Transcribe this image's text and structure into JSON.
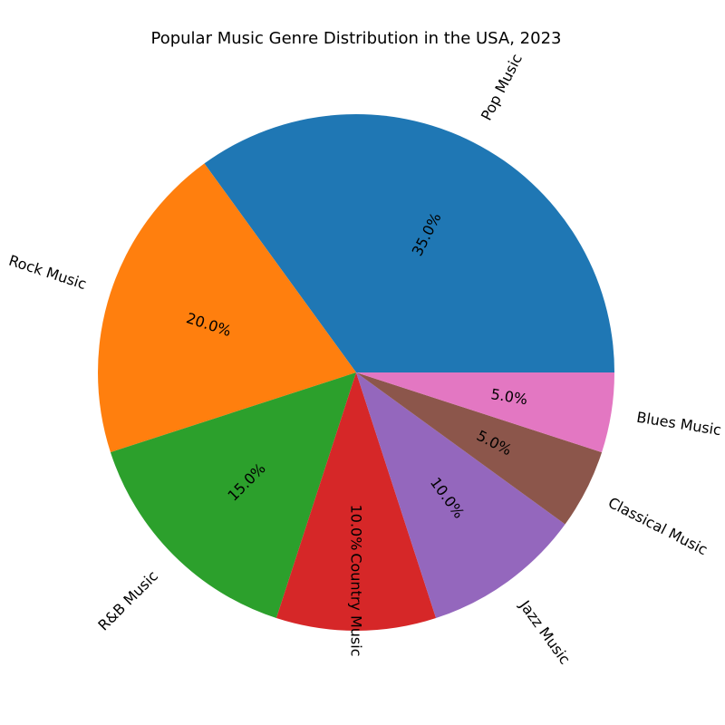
{
  "chart_data": {
    "type": "pie",
    "title": "Popular Music Genre Distribution in the USA, 2023",
    "categories": [
      "Pop Music",
      "Rock Music",
      "R&B Music",
      "Country Music",
      "Jazz Music",
      "Classical Music",
      "Blues Music"
    ],
    "values": [
      35,
      20,
      15,
      10,
      10,
      5,
      5
    ],
    "value_labels": [
      "35.0%",
      "20.0%",
      "15.0%",
      "10.0%",
      "10.0%",
      "5.0%",
      "5.0%"
    ],
    "colors": [
      "#1f77b4",
      "#ff7f0e",
      "#2ca02c",
      "#d62728",
      "#9467bd",
      "#8c564b",
      "#e377c2"
    ],
    "start_angle_deg": 0,
    "direction": "counterclockwise",
    "label_rotation": "radial",
    "legend": "none"
  }
}
